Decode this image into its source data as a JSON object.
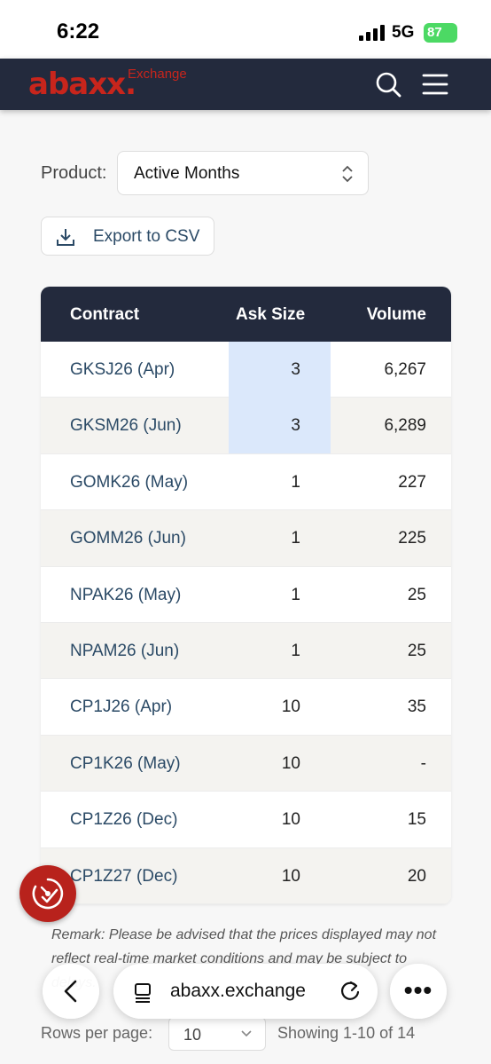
{
  "status_bar": {
    "time": "6:22",
    "network": "5G",
    "battery": "87"
  },
  "header": {
    "logo": "abaxx.",
    "logo_sub": "Exchange"
  },
  "filters": {
    "product_label": "Product:",
    "product_value": "Active Months",
    "export_label": "Export to CSV"
  },
  "table": {
    "headers": [
      "Contract",
      "Ask Size",
      "Volume"
    ],
    "rows": [
      {
        "contract": "GKSJ26 (Apr)",
        "ask_size": "3",
        "volume": "6,267",
        "highlight": true
      },
      {
        "contract": "GKSM26 (Jun)",
        "ask_size": "3",
        "volume": "6,289",
        "highlight": true
      },
      {
        "contract": "GOMK26 (May)",
        "ask_size": "1",
        "volume": "227",
        "highlight": false
      },
      {
        "contract": "GOMM26 (Jun)",
        "ask_size": "1",
        "volume": "225",
        "highlight": false
      },
      {
        "contract": "NPAK26 (May)",
        "ask_size": "1",
        "volume": "25",
        "highlight": false
      },
      {
        "contract": "NPAM26 (Jun)",
        "ask_size": "1",
        "volume": "25",
        "highlight": false
      },
      {
        "contract": "CP1J26 (Apr)",
        "ask_size": "10",
        "volume": "35",
        "highlight": false
      },
      {
        "contract": "CP1K26 (May)",
        "ask_size": "10",
        "volume": "-",
        "highlight": false
      },
      {
        "contract": "CP1Z26 (Dec)",
        "ask_size": "10",
        "volume": "15",
        "highlight": false
      },
      {
        "contract": "CP1Z27 (Dec)",
        "ask_size": "10",
        "volume": "20",
        "highlight": false
      }
    ]
  },
  "remark": "Remark: Please be advised that the prices displayed may not reflect real-time market conditions and may be subject to delays.",
  "pagination": {
    "rows_per_page_label": "Rows per page:",
    "rows_per_page_value": "10",
    "showing": "Showing 1-10 of 14"
  },
  "browser": {
    "domain": "abaxx.exchange",
    "more_label": "•••"
  },
  "colors": {
    "header_bg": "#232a3d",
    "brand_red": "#c8251c",
    "link": "#2b4a66",
    "highlight": "#dbe8fb"
  }
}
